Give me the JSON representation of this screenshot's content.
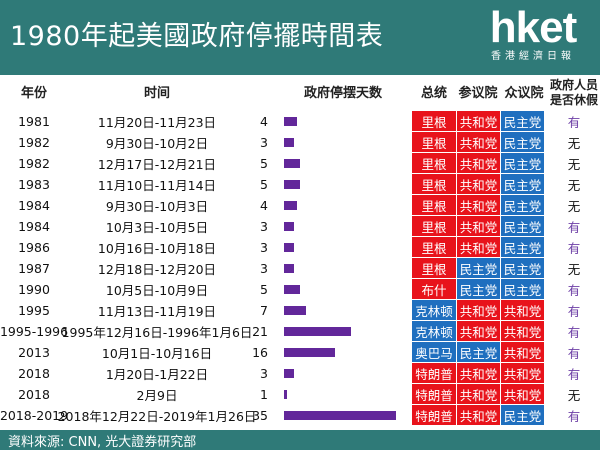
{
  "header": {
    "title": "1980年起美國政府停擺時間表",
    "logo_word": "hket",
    "logo_sub": "香港經濟日報"
  },
  "columns": {
    "year": "年份",
    "period": "时间",
    "days": "政府停摆天数",
    "president": "总统",
    "senate": "参议院",
    "house": "众议院",
    "furlough": "政府人员是否休假"
  },
  "colors": {
    "header_bg": "#2f7a78",
    "republican": "#e8131b",
    "democrat": "#1f6fbf",
    "bar": "#62279a",
    "yes_text": "#6d3fa6"
  },
  "chart_data": {
    "type": "table",
    "bar_column": "days",
    "bar_max": 35,
    "rows": [
      {
        "year": "1981",
        "period": "11月20日-11月23日",
        "days": 4,
        "president": "里根",
        "president_party": "R",
        "senate": "共和党",
        "senate_party": "R",
        "house": "民主党",
        "house_party": "D",
        "furlough": "有"
      },
      {
        "year": "1982",
        "period": "9月30日-10月2日",
        "days": 3,
        "president": "里根",
        "president_party": "R",
        "senate": "共和党",
        "senate_party": "R",
        "house": "民主党",
        "house_party": "D",
        "furlough": "无"
      },
      {
        "year": "1982",
        "period": "12月17日-12月21日",
        "days": 5,
        "president": "里根",
        "president_party": "R",
        "senate": "共和党",
        "senate_party": "R",
        "house": "民主党",
        "house_party": "D",
        "furlough": "无"
      },
      {
        "year": "1983",
        "period": "11月10日-11月14日",
        "days": 5,
        "president": "里根",
        "president_party": "R",
        "senate": "共和党",
        "senate_party": "R",
        "house": "民主党",
        "house_party": "D",
        "furlough": "无"
      },
      {
        "year": "1984",
        "period": "9月30日-10月3日",
        "days": 4,
        "president": "里根",
        "president_party": "R",
        "senate": "共和党",
        "senate_party": "R",
        "house": "民主党",
        "house_party": "D",
        "furlough": "无"
      },
      {
        "year": "1984",
        "period": "10月3日-10月5日",
        "days": 3,
        "president": "里根",
        "president_party": "R",
        "senate": "共和党",
        "senate_party": "R",
        "house": "民主党",
        "house_party": "D",
        "furlough": "有"
      },
      {
        "year": "1986",
        "period": "10月16日-10月18日",
        "days": 3,
        "president": "里根",
        "president_party": "R",
        "senate": "共和党",
        "senate_party": "R",
        "house": "民主党",
        "house_party": "D",
        "furlough": "有"
      },
      {
        "year": "1987",
        "period": "12月18日-12月20日",
        "days": 3,
        "president": "里根",
        "president_party": "R",
        "senate": "民主党",
        "senate_party": "D",
        "house": "民主党",
        "house_party": "D",
        "furlough": "无"
      },
      {
        "year": "1990",
        "period": "10月5日-10月9日",
        "days": 5,
        "president": "布什",
        "president_party": "R",
        "senate": "民主党",
        "senate_party": "D",
        "house": "民主党",
        "house_party": "D",
        "furlough": "有"
      },
      {
        "year": "1995",
        "period": "11月13日-11月19日",
        "days": 7,
        "president": "克林顿",
        "president_party": "D",
        "senate": "共和党",
        "senate_party": "R",
        "house": "共和党",
        "house_party": "R",
        "furlough": "有"
      },
      {
        "year": "1995-1996",
        "period": "1995年12月16日-1996年1月6日",
        "days": 21,
        "president": "克林顿",
        "president_party": "D",
        "senate": "共和党",
        "senate_party": "R",
        "house": "共和党",
        "house_party": "R",
        "furlough": "有"
      },
      {
        "year": "2013",
        "period": "10月1日-10月16日",
        "days": 16,
        "president": "奥巴马",
        "president_party": "D",
        "senate": "民主党",
        "senate_party": "D",
        "house": "共和党",
        "house_party": "R",
        "furlough": "有"
      },
      {
        "year": "2018",
        "period": "1月20日-1月22日",
        "days": 3,
        "president": "特朗普",
        "president_party": "R",
        "senate": "共和党",
        "senate_party": "R",
        "house": "共和党",
        "house_party": "R",
        "furlough": "有"
      },
      {
        "year": "2018",
        "period": "2月9日",
        "days": 1,
        "president": "特朗普",
        "president_party": "R",
        "senate": "共和党",
        "senate_party": "R",
        "house": "共和党",
        "house_party": "R",
        "furlough": "无"
      },
      {
        "year": "2018-2019",
        "period": "2018年12月22日-2019年1月26日",
        "days": 35,
        "president": "特朗普",
        "president_party": "R",
        "senate": "共和党",
        "senate_party": "R",
        "house": "民主党",
        "house_party": "D",
        "furlough": "有"
      }
    ]
  },
  "footer": {
    "source": "資料來源: CNN, 光大證券研究部"
  }
}
